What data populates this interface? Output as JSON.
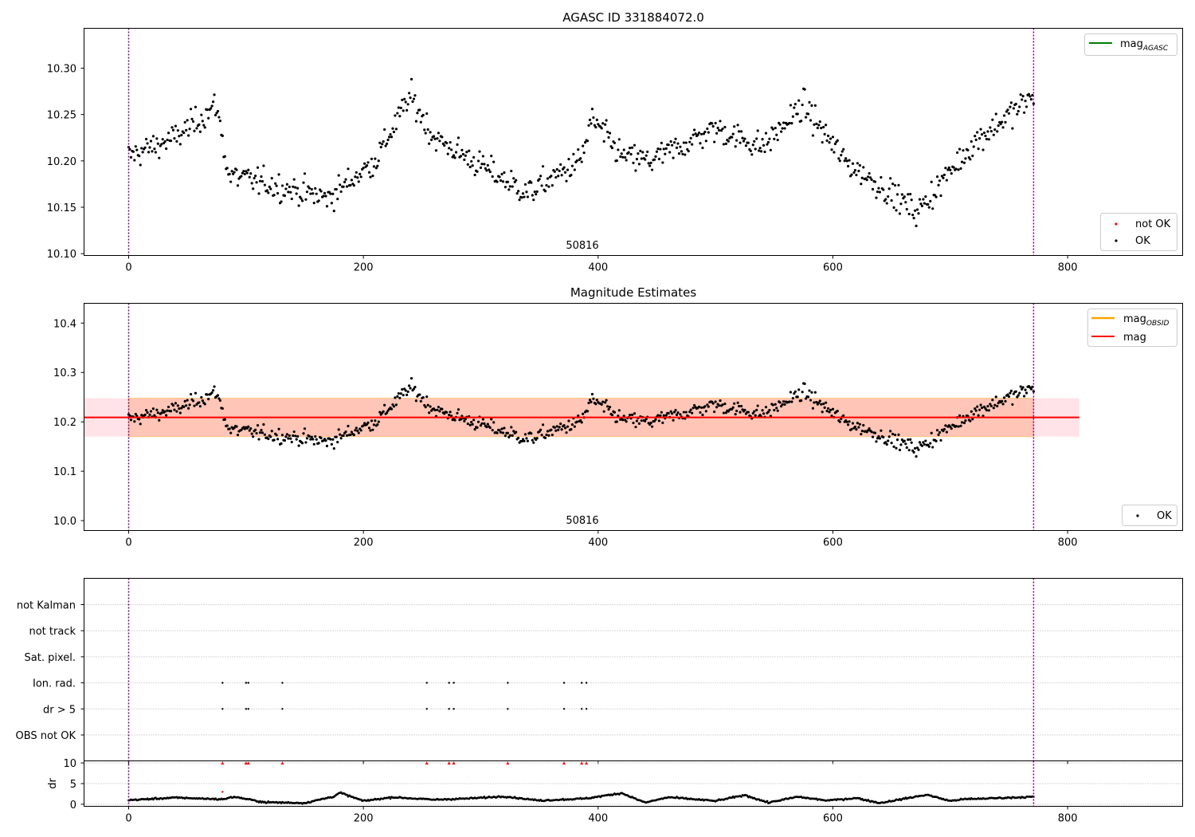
{
  "chart_data": [
    {
      "type": "scatter",
      "title": "AGASC ID 331884072.0",
      "xlim": [
        -38,
        898
      ],
      "ylim": [
        10.098,
        10.343
      ],
      "x_ticks": [
        "0",
        "200",
        "400",
        "600",
        "800"
      ],
      "y_ticks": [
        "10.10",
        "10.15",
        "10.20",
        "10.25",
        "10.30"
      ],
      "annotation": "50816",
      "obs_boundaries": [
        0,
        771
      ],
      "series": [
        {
          "name": "not OK",
          "color": "#ff0000",
          "points": []
        },
        {
          "name": "OK",
          "color": "#000000",
          "mean_path": [
            [
              0,
              10.205
            ],
            [
              40,
              10.225
            ],
            [
              75,
              10.26
            ],
            [
              85,
              10.185
            ],
            [
              170,
              10.16
            ],
            [
              210,
              10.2
            ],
            [
              240,
              10.27
            ],
            [
              260,
              10.225
            ],
            [
              340,
              10.165
            ],
            [
              385,
              10.2
            ],
            [
              395,
              10.245
            ],
            [
              420,
              10.205
            ],
            [
              445,
              10.2
            ],
            [
              500,
              10.235
            ],
            [
              540,
              10.215
            ],
            [
              575,
              10.26
            ],
            [
              610,
              10.2
            ],
            [
              672,
              10.145
            ],
            [
              720,
              10.22
            ],
            [
              771,
              10.27
            ]
          ],
          "scatter_std": 0.019
        }
      ],
      "legend": [
        {
          "label": "mag",
          "subscript": "AGASC",
          "color": "#008000"
        }
      ],
      "legend_positions": [
        "top-right",
        "bottom-right"
      ]
    },
    {
      "type": "scatter",
      "title": "Magnitude Estimates",
      "xlim": [
        -38,
        898
      ],
      "ylim": [
        9.98,
        10.44
      ],
      "x_ticks": [
        "0",
        "200",
        "400",
        "600",
        "800"
      ],
      "y_ticks": [
        "10.0",
        "10.1",
        "10.2",
        "10.3",
        "10.4"
      ],
      "annotation": "50816",
      "obs_boundaries": [
        0,
        771
      ],
      "mag_line": {
        "name": "mag",
        "value": 10.209,
        "color": "#ff0000",
        "x_range": [
          -38,
          810
        ]
      },
      "mag_band": {
        "low": 10.17,
        "high": 10.248,
        "color": "#ffc0cb"
      },
      "mag_obsid": {
        "name": "mag",
        "subscript": "OBSID",
        "value": 10.209,
        "low": 10.17,
        "high": 10.248,
        "color": "#ffa500",
        "x_range": [
          0,
          771
        ]
      },
      "series": [
        {
          "name": "OK",
          "color": "#000000"
        }
      ],
      "legend": [
        {
          "label": "mag",
          "subscript": "OBSID",
          "color": "#ffa500"
        },
        {
          "label": "mag",
          "subscript": "",
          "color": "#ff0000"
        }
      ],
      "legend_positions": [
        "top-right",
        "bottom-right"
      ]
    },
    {
      "type": "scatter",
      "xlim": [
        -38,
        898
      ],
      "flag_rows": [
        "not Kalman",
        "not track",
        "Sat. pixel.",
        "Ion. rad.",
        "dr > 5",
        "OBS not OK"
      ],
      "flag_events": {
        "not Kalman": [],
        "not track": [],
        "Sat. pixel.": [],
        "Ion. rad.": [
          80,
          100,
          102,
          131,
          254,
          273,
          277,
          323,
          371,
          386,
          390
        ],
        "dr > 5": [
          80,
          100,
          102,
          131,
          254,
          273,
          277,
          323,
          371,
          386,
          390
        ],
        "OBS not OK": []
      },
      "x_ticks": [
        "0",
        "200",
        "400",
        "600",
        "800"
      ],
      "obs_boundaries": [
        0,
        771
      ]
    },
    {
      "type": "scatter",
      "ylabel": "dr",
      "xlim": [
        -38,
        898
      ],
      "ylim": [
        -0.5,
        10.5
      ],
      "y_ticks": [
        "0",
        "5",
        "10"
      ],
      "x_ticks": [
        "0",
        "200",
        "400",
        "600",
        "800"
      ],
      "clipped_points_at": 10,
      "clipped_x": [
        80,
        100,
        102,
        131,
        254,
        273,
        277,
        323,
        371,
        386,
        390
      ],
      "outlier_points": [
        [
          80,
          3.0
        ]
      ],
      "dr_path": [
        [
          0,
          1.0
        ],
        [
          40,
          1.6
        ],
        [
          80,
          1.2
        ],
        [
          90,
          1.8
        ],
        [
          115,
          0.5
        ],
        [
          150,
          0.3
        ],
        [
          175,
          1.9
        ],
        [
          180,
          2.8
        ],
        [
          200,
          0.8
        ],
        [
          225,
          1.7
        ],
        [
          260,
          1.1
        ],
        [
          290,
          1.4
        ],
        [
          320,
          1.9
        ],
        [
          350,
          0.9
        ],
        [
          390,
          1.4
        ],
        [
          420,
          2.7
        ],
        [
          440,
          0.4
        ],
        [
          460,
          1.7
        ],
        [
          500,
          0.8
        ],
        [
          525,
          2.2
        ],
        [
          545,
          0.4
        ],
        [
          570,
          1.8
        ],
        [
          595,
          0.9
        ],
        [
          620,
          1.5
        ],
        [
          640,
          0.3
        ],
        [
          680,
          2.3
        ],
        [
          700,
          0.8
        ],
        [
          710,
          1.2
        ],
        [
          771,
          1.8
        ]
      ],
      "obs_boundaries": [
        0,
        771
      ]
    }
  ]
}
